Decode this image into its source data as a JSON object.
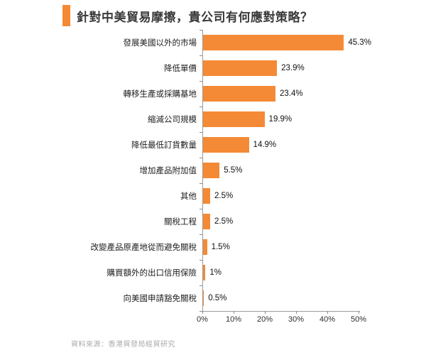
{
  "header": {
    "title": "針對中美貿易摩擦，貴公司有何應對策略？"
  },
  "footer": {
    "source": "資料來源：香港貿發局經貿研究"
  },
  "colors": {
    "bar": "#f48a36",
    "accent": "#f48a36",
    "axis_line": "#9a9a9a",
    "tick": "#8c8c8c",
    "title_text": "#3a3a3a",
    "source_text": "#ababab"
  },
  "chart_data": {
    "type": "bar",
    "orientation": "horizontal",
    "title": "針對中美貿易摩擦，貴公司有何應對策略？",
    "categories": [
      "發展美國以外的市場",
      "降低單價",
      "轉移生產或採購基地",
      "縮減公司規模",
      "降低最低訂貨數量",
      "增加產品附加值",
      "其他",
      "關稅工程",
      "改變產品原產地從而避免關稅",
      "購買額外的出口信用保險",
      "向美國申請豁免關稅"
    ],
    "values": [
      45.3,
      23.9,
      23.4,
      19.9,
      14.9,
      5.5,
      2.5,
      2.5,
      1.5,
      1,
      0.5
    ],
    "value_labels": [
      "45.3%",
      "23.9%",
      "23.4%",
      "19.9%",
      "14.9%",
      "5.5%",
      "2.5%",
      "2.5%",
      "1.5%",
      "1%",
      "0.5%"
    ],
    "xlim": [
      0,
      50
    ],
    "x_ticks": [
      "0%",
      "10%",
      "20%",
      "30%",
      "40%",
      "50%"
    ],
    "xlabel": "",
    "ylabel": "",
    "grid": false,
    "legend": false
  }
}
